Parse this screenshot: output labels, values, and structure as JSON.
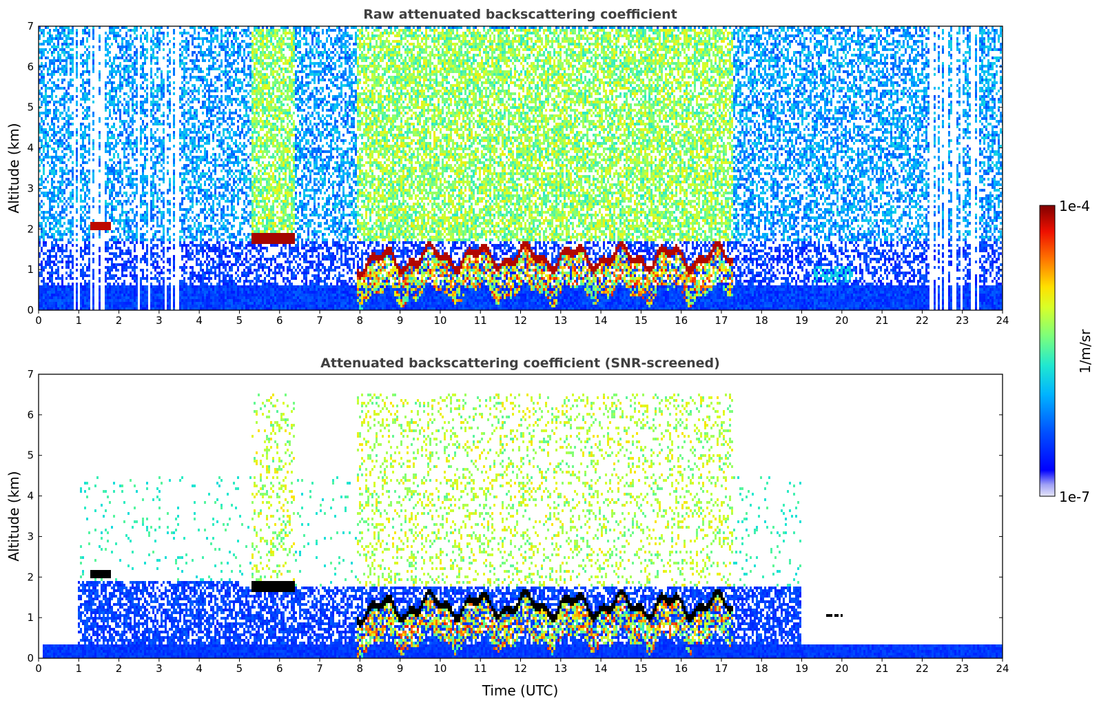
{
  "chart_data": [
    {
      "type": "heatmap",
      "title": "Raw attenuated backscattering coefficient",
      "xlabel": "",
      "ylabel": "Altitude (km)",
      "xlim": [
        0,
        24
      ],
      "ylim": [
        0,
        7
      ],
      "x_ticks": [
        "0",
        "1",
        "2",
        "3",
        "4",
        "5",
        "6",
        "7",
        "8",
        "9",
        "10",
        "11",
        "12",
        "13",
        "14",
        "15",
        "16",
        "17",
        "18",
        "19",
        "20",
        "21",
        "22",
        "23",
        "24"
      ],
      "y_ticks": [
        "0",
        "1",
        "2",
        "3",
        "4",
        "5",
        "6",
        "7"
      ],
      "grid": false,
      "features": [
        {
          "kind": "cloud-layer",
          "x": [
            1.3,
            1.8
          ],
          "altitude_km": 2.05
        },
        {
          "kind": "cloud-layer",
          "x": [
            5.3,
            6.4
          ],
          "altitude_km": 1.75
        },
        {
          "kind": "cloud-layer",
          "x": [
            7.9,
            17.3
          ],
          "altitude_km": [
            1.1,
            1.8
          ]
        },
        {
          "kind": "aerosol-patch",
          "x": [
            19.3,
            20.3
          ],
          "altitude_km": [
            0.7,
            1.1
          ]
        },
        {
          "kind": "boundary-layer",
          "x": [
            0,
            24
          ],
          "altitude_km": [
            0,
            0.6
          ]
        },
        {
          "kind": "missing-profiles",
          "x": [
            0.9,
            3.5
          ]
        },
        {
          "kind": "missing-profiles",
          "x": [
            22.2,
            23.4
          ]
        }
      ]
    },
    {
      "type": "heatmap",
      "title": "Attenuated backscattering coefficient (SNR-screened)",
      "xlabel": "Time (UTC)",
      "ylabel": "Altitude (km)",
      "xlim": [
        0,
        24
      ],
      "ylim": [
        0,
        7
      ],
      "x_ticks": [
        "0",
        "1",
        "2",
        "3",
        "4",
        "5",
        "6",
        "7",
        "8",
        "9",
        "10",
        "11",
        "12",
        "13",
        "14",
        "15",
        "16",
        "17",
        "18",
        "19",
        "20",
        "21",
        "22",
        "23",
        "24"
      ],
      "y_ticks": [
        "0",
        "1",
        "2",
        "3",
        "4",
        "5",
        "6",
        "7"
      ],
      "grid": false,
      "features": [
        {
          "kind": "cloud-layer",
          "x": [
            1.3,
            1.8
          ],
          "altitude_km": 2.1
        },
        {
          "kind": "cloud-layer",
          "x": [
            5.3,
            6.4
          ],
          "altitude_km": 1.75
        },
        {
          "kind": "cloud-layer",
          "x": [
            7.9,
            17.3
          ],
          "altitude_km": [
            1.1,
            1.8
          ]
        },
        {
          "kind": "aerosol-patch",
          "x": [
            19.5,
            20.0
          ],
          "altitude_km": 1.1
        },
        {
          "kind": "boundary-layer",
          "x": [
            0,
            24
          ],
          "altitude_km": [
            0,
            0.35
          ]
        }
      ]
    }
  ],
  "colorbar": {
    "label": "1/m/sr",
    "min_label": "1e-7",
    "max_label": "1e-4",
    "scale": "log",
    "colormap": "jet",
    "range": [
      1e-07,
      0.0001
    ]
  }
}
